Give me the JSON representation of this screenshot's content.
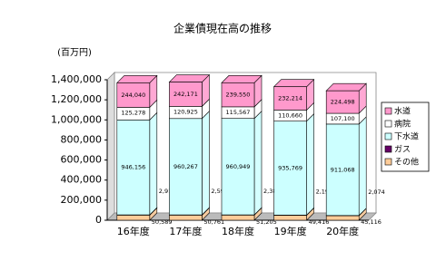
{
  "chart_data": {
    "type": "stacked-bar-3d",
    "title": "企業債現在高の推移",
    "y_label": "(百万円)",
    "categories": [
      "16年度",
      "17年度",
      "18年度",
      "19年度",
      "20年度"
    ],
    "series": [
      {
        "name": "その他",
        "color": "#ffcc99",
        "values": [
          50589,
          50761,
          51205,
          49416,
          45116
        ],
        "value_labels": [
          "50,589",
          "50,761",
          "51,205",
          "49,416",
          "45,116"
        ]
      },
      {
        "name": "ガス",
        "color": "#660066",
        "values": [
          2910,
          2597,
          2389,
          2193,
          2074
        ],
        "value_labels": [
          "2,910",
          "2,597",
          "2,389",
          "2,193",
          "2,074"
        ]
      },
      {
        "name": "下水道",
        "color": "#ccffff",
        "values": [
          946156,
          960267,
          960949,
          935769,
          911068
        ],
        "value_labels": [
          "946,156",
          "960,267",
          "960,949",
          "935,769",
          "911,068"
        ]
      },
      {
        "name": "病院",
        "color": "#ffffff",
        "values": [
          125278,
          120925,
          115567,
          110660,
          107100
        ],
        "value_labels": [
          "125,278",
          "120,925",
          "115,567",
          "110,660",
          "107,100"
        ]
      },
      {
        "name": "水道",
        "color": "#ff99cc",
        "values": [
          244040,
          242171,
          239550,
          232214,
          224498
        ],
        "value_labels": [
          "244,040",
          "242,171",
          "239,550",
          "232,214",
          "224,498"
        ]
      }
    ],
    "ylim": [
      0,
      1400000
    ],
    "yticks": [
      0,
      {
        "value": 200000,
        "label": "200,000"
      },
      {
        "value": 400000,
        "label": "400,000"
      },
      {
        "value": 600000,
        "label": "600,000"
      },
      {
        "value": 800000,
        "label": "800,000"
      },
      {
        "value": 1000000,
        "label": "1,000,000"
      },
      {
        "value": 1200000,
        "label": "1,200,000"
      },
      {
        "value": 1400000,
        "label": "1,400,000"
      }
    ],
    "grid": false,
    "legend": "right"
  }
}
